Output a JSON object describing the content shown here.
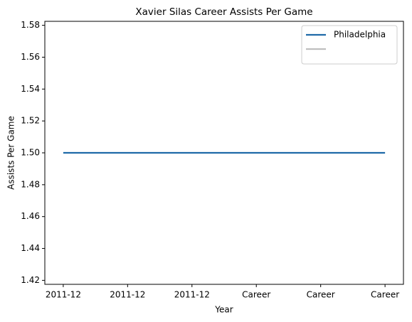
{
  "chart_data": {
    "type": "line",
    "title": "Xavier Silas Career Assists Per Game",
    "x_label": "Year",
    "y_label": "Assists Per Game",
    "categories": [
      "2011-12",
      "2011-12",
      "2011-12",
      "Career",
      "Career",
      "Career"
    ],
    "series": [
      {
        "name": "Philadelphia",
        "color": "#1f6aa8",
        "values": [
          1.5,
          1.5,
          1.5,
          1.5,
          1.5,
          1.5
        ]
      },
      {
        "color": "#bfbfbf",
        "values": [
          null,
          null,
          null,
          null,
          null,
          null
        ]
      }
    ],
    "ylim": [
      1.4175,
      1.5825
    ],
    "yticks": [
      1.42,
      1.44,
      1.46,
      1.48,
      {
        "value": 1.5,
        "label": "1.50"
      },
      1.52,
      1.54,
      1.56,
      1.58
    ],
    "legend": "upper right",
    "grid": false
  }
}
